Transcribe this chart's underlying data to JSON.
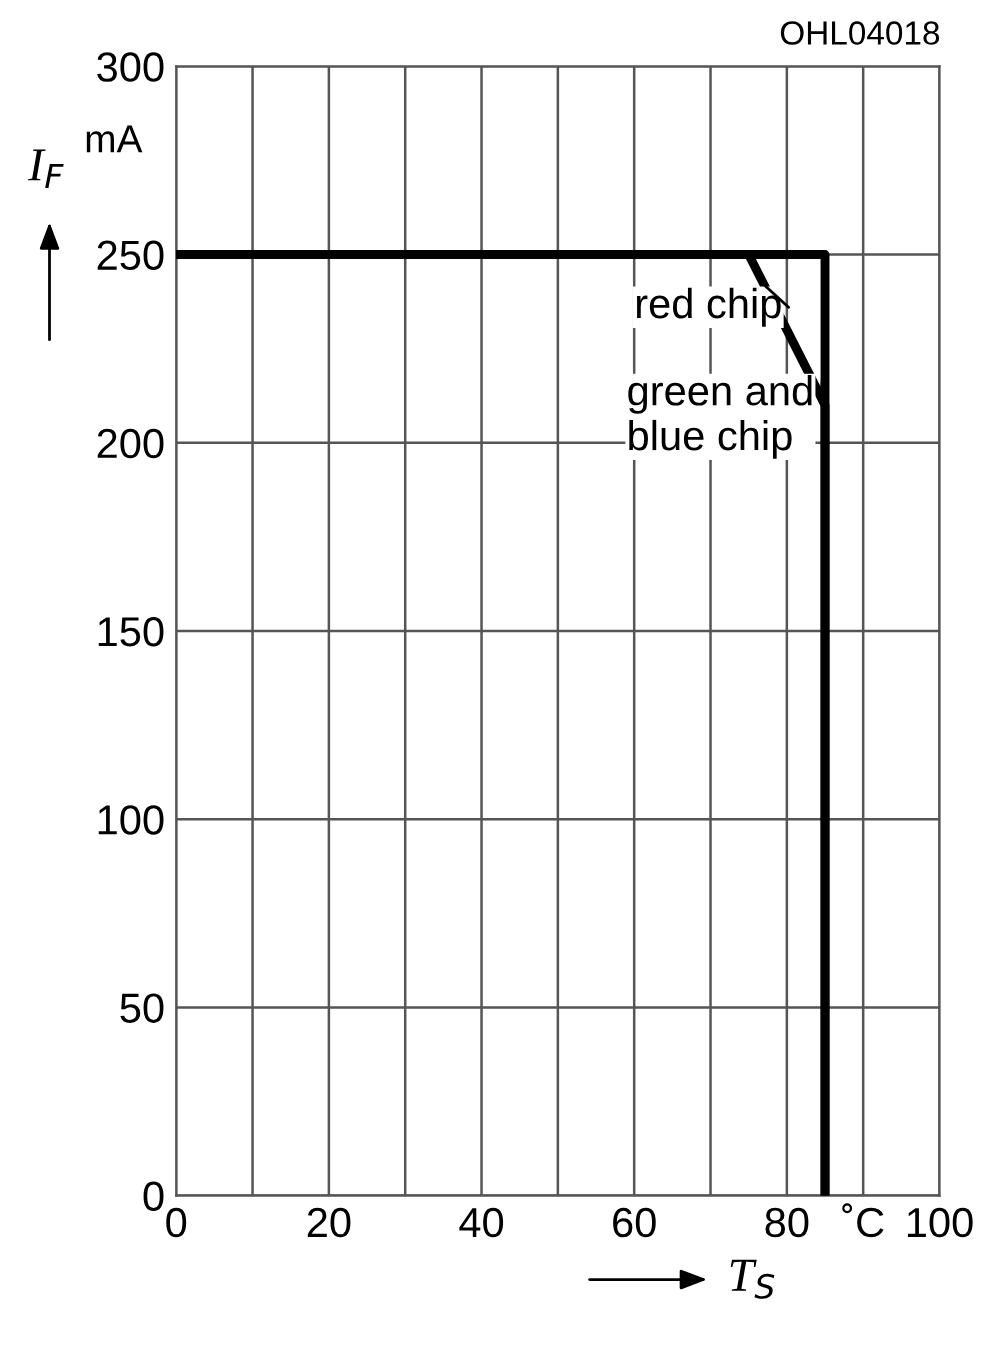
{
  "chart_data": {
    "type": "line",
    "xlabel": "T$_{S}$",
    "ylabel": "I$_{F}$",
    "annotations": [
      "OHL04018",
      "mA",
      {
        "text": "red chip",
        "x": 77,
        "y": 242
      },
      {
        "text": "green and\nblue chip",
        "x": 85,
        "y": 229
      }
    ],
    "series": [
      {
        "color": "#000000",
        "x": [
          0,
          75,
          85,
          85
        ],
        "values": [
          250,
          250,
          210,
          0
        ]
      },
      {
        "color": "#000000",
        "x": [
          0,
          85,
          85
        ],
        "values": [
          250,
          250,
          0
        ]
      }
    ],
    "xlim": [
      0,
      100
    ],
    "xticks": [
      0,
      20,
      40,
      60,
      80,
      {
        "value": 90,
        "label": "˚C"
      },
      100
    ],
    "ylim": [
      0,
      300
    ],
    "yticks": [
      0,
      50,
      100,
      150,
      200,
      250,
      300
    ],
    "grid": true,
    "legend": false,
    "line_style": "solid",
    "marker": "none"
  }
}
